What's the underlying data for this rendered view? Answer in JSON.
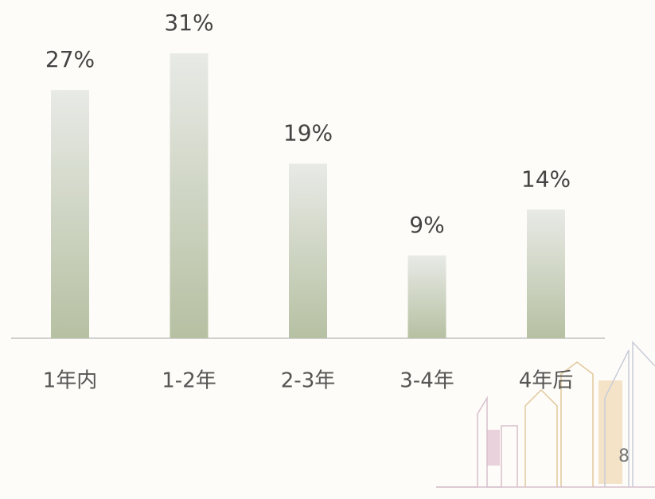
{
  "chart_data": {
    "type": "bar",
    "categories": [
      "1年内",
      "1-2年",
      "2-3年",
      "3-4年",
      "4年后"
    ],
    "values": [
      27,
      31,
      19,
      9,
      14
    ],
    "value_labels": [
      "27%",
      "31%",
      "19%",
      "9%",
      "14%"
    ],
    "color": "#b6c0a2"
  },
  "page_number": "8"
}
